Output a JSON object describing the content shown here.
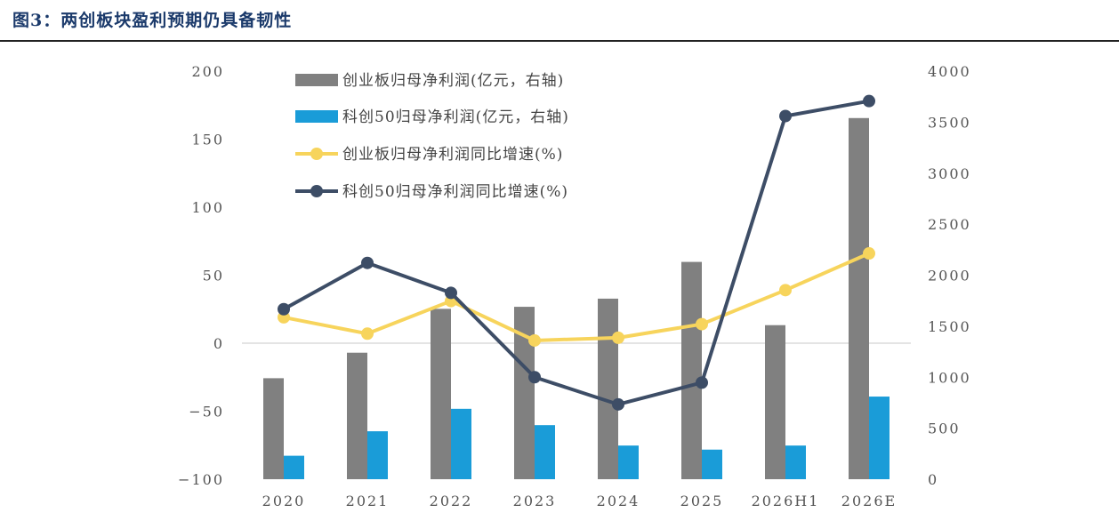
{
  "figure": {
    "title": "图3：两创板块盈利预期仍具备韧性"
  },
  "chart_data": {
    "type": "bar",
    "categories": [
      "2020",
      "2021",
      "2022",
      "2023",
      "2024",
      "2025",
      "2026H1",
      "2026E"
    ],
    "ylim_left": [
      -100,
      200
    ],
    "yticks_left": [
      "200",
      "150",
      "100",
      "50",
      "0",
      "−50",
      "−100"
    ],
    "ylim_right": [
      0,
      4000
    ],
    "yticks_right": [
      "4000",
      "3500",
      "3000",
      "2500",
      "2000",
      "1500",
      "1000",
      "500",
      "0"
    ],
    "series": [
      {
        "name": "创业板归母净利润(亿元，右轴)",
        "type": "bar",
        "axis": "right",
        "color": "#808080",
        "values": [
          990,
          1240,
          1670,
          1690,
          1770,
          2130,
          1510,
          3540
        ]
      },
      {
        "name": "科创50归母净利润(亿元，右轴)",
        "type": "bar",
        "axis": "right",
        "color": "#1a9cd8",
        "values": [
          230,
          470,
          690,
          530,
          330,
          290,
          330,
          810
        ]
      },
      {
        "name": "创业板归母净利润同比增速(%)",
        "type": "line",
        "axis": "left",
        "color": "#f7d45c",
        "values": [
          19,
          7,
          31,
          2,
          4,
          14,
          39,
          66
        ]
      },
      {
        "name": "科创50归母净利润同比增速(%)",
        "type": "line",
        "axis": "left",
        "color": "#3d4d66",
        "values": [
          25,
          59,
          37,
          -25,
          -45,
          -29,
          167,
          178
        ]
      }
    ],
    "grid": false,
    "legend_position": "top-left"
  }
}
